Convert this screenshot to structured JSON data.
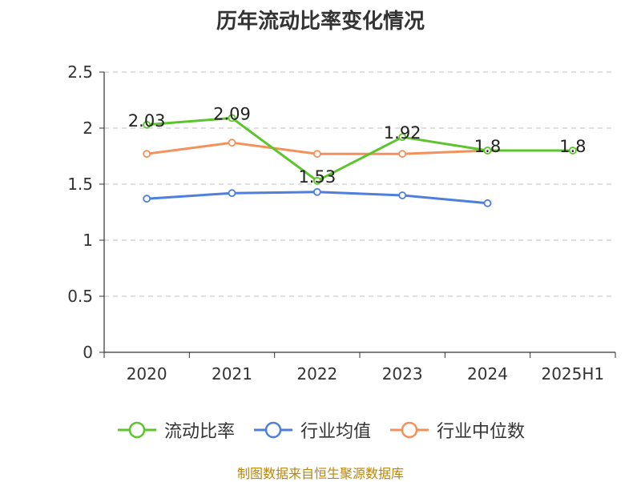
{
  "chart_data": {
    "type": "line",
    "title": "历年流动比率变化情况",
    "categories": [
      "2020",
      "2021",
      "2022",
      "2023",
      "2024",
      "2025H1"
    ],
    "ylim": [
      0,
      2.5
    ],
    "yticks": [
      0,
      0.5,
      1,
      1.5,
      2,
      2.5
    ],
    "ytick_labels": [
      "0",
      "0.5",
      "1",
      "1.5",
      "2",
      "2.5"
    ],
    "grid": true,
    "legend_position": "bottom",
    "series": [
      {
        "name": "流动比率",
        "color": "#5cc52b",
        "values": [
          2.03,
          2.09,
          1.53,
          1.92,
          1.8,
          1.8
        ],
        "labels": [
          "2.03",
          "2.09",
          "1.53",
          "1.92",
          "1.8",
          "1.8"
        ]
      },
      {
        "name": "行业均值",
        "color": "#4e7fdb",
        "values": [
          1.37,
          1.42,
          1.43,
          1.4,
          1.33,
          null
        ]
      },
      {
        "name": "行业中位数",
        "color": "#f4905a",
        "values": [
          1.77,
          1.87,
          1.77,
          1.77,
          1.8,
          null
        ]
      }
    ]
  },
  "source": "制图数据来自恒生聚源数据库"
}
